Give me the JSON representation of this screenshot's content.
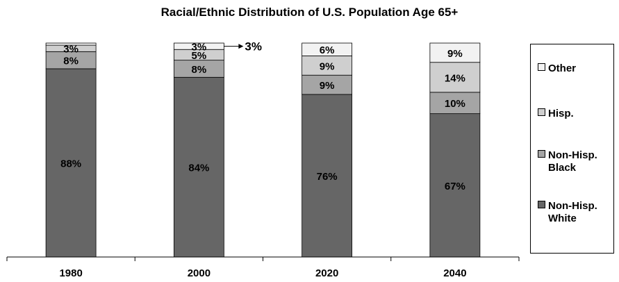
{
  "chart_data": {
    "type": "bar",
    "stacked": true,
    "title": "Racial/Ethnic Distribution of U.S. Population Age 65+",
    "categories": [
      "1980",
      "2000",
      "2020",
      "2040"
    ],
    "ylim": [
      0,
      100
    ],
    "grid": false,
    "legend_position": "right",
    "series": [
      {
        "name": "Non-Hisp. White",
        "color": "#666666",
        "values": [
          88,
          84,
          76,
          67
        ],
        "labels": [
          "88%",
          "84%",
          "76%",
          "67%"
        ]
      },
      {
        "name": "Non-Hisp. Black",
        "color": "#a5a5a5",
        "values": [
          8,
          8,
          9,
          10
        ],
        "labels": [
          "8%",
          "8%",
          "9%",
          "10%"
        ]
      },
      {
        "name": "Hisp.",
        "color": "#cfcfcf",
        "values": [
          3,
          5,
          9,
          14
        ],
        "labels": [
          "3%",
          "5%",
          "9%",
          "14%"
        ]
      },
      {
        "name": "Other",
        "color": "#f2f2f2",
        "values": [
          1,
          3,
          6,
          9
        ],
        "labels": [
          "",
          "3%",
          "6%",
          "9%"
        ]
      }
    ],
    "annotations": [
      {
        "category": "2000",
        "series": "Other",
        "text": "3%"
      }
    ]
  },
  "legend": {
    "items": [
      {
        "label": "Other",
        "color": "#f2f2f2"
      },
      {
        "label": "Hisp.",
        "color": "#cfcfcf"
      },
      {
        "label": "Non-Hisp.\nBlack",
        "color": "#a5a5a5"
      },
      {
        "label": "Non-Hisp.\nWhite",
        "color": "#666666"
      }
    ]
  }
}
